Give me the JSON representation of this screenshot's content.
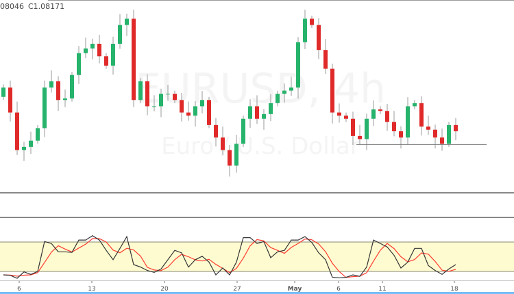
{
  "header": {
    "open_fragment": "08046",
    "close_label": "C1.08171"
  },
  "watermark": {
    "symbol": "EURUSD, 4h",
    "description": "Euro / U.S. Dollar"
  },
  "colors": {
    "up": "#26b36b",
    "down": "#e02a2a",
    "wick": "#9a9a9a",
    "k_line": "#333333",
    "d_line": "#ff3b30",
    "band_fill": "#fffbd0",
    "band_border": "#8a8a70",
    "axis_bottom": "#2196f3"
  },
  "chart_data": [
    {
      "type": "candlestick",
      "ylim": [
        1.074,
        1.0985
      ],
      "last_close": 1.08171,
      "close": [
        1.0873,
        1.0841,
        1.0793,
        1.0797,
        1.0805,
        1.0821,
        1.0873,
        1.0881,
        1.0857,
        1.0859,
        1.0889,
        1.0917,
        1.0923,
        1.0929,
        1.0913,
        1.0901,
        1.0929,
        1.0953,
        1.0961,
        1.0857,
        1.0881,
        1.0849,
        1.0849,
        1.0865,
        1.0865,
        1.0857,
        1.0841,
        1.0837,
        1.0849,
        1.0857,
        1.0825,
        1.0809,
        1.0793,
        1.0773,
        1.0801,
        1.0833,
        1.0849,
        1.0833,
        1.0839,
        1.0853,
        1.0865,
        1.0869,
        1.0873,
        1.0931,
        1.0961,
        1.0953,
        1.0921,
        1.0897,
        1.0841,
        1.0837,
        1.0833,
        1.0811,
        1.0807,
        1.0833,
        1.0845,
        1.0843,
        1.0829,
        1.0817,
        1.0809,
        1.0849,
        1.0853,
        1.0823,
        1.0819,
        1.0809,
        1.0801,
        1.0825,
        1.0817
      ],
      "support_line": 1.08,
      "x_ticks": [
        "6",
        "13",
        "20",
        "27",
        "May",
        "6",
        "11",
        "18"
      ]
    },
    {
      "type": "line",
      "indicator": "stochastic",
      "ylim": [
        0,
        100
      ],
      "band": [
        20,
        80
      ],
      "k": [
        13,
        12,
        6,
        19,
        14,
        20,
        81,
        77,
        60,
        60,
        59,
        84,
        84,
        93,
        84,
        63,
        44,
        67,
        91,
        34,
        29,
        22,
        18,
        25,
        44,
        63,
        58,
        29,
        44,
        51,
        39,
        13,
        27,
        13,
        39,
        89,
        89,
        77,
        81,
        48,
        60,
        63,
        84,
        84,
        91,
        79,
        58,
        44,
        8,
        7,
        8,
        13,
        10,
        29,
        84,
        77,
        70,
        53,
        27,
        39,
        67,
        67,
        32,
        22,
        14,
        25,
        34
      ]
    }
  ]
}
